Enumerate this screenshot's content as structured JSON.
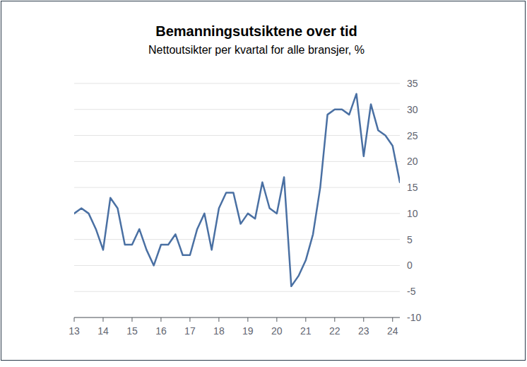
{
  "chart_data": {
    "type": "line",
    "title": "Bemanningsutsiktene over tid",
    "subtitle": "Nettoutsikter per kvartal for alle bransjer, %",
    "x": [
      13,
      13.25,
      13.5,
      13.75,
      14,
      14.25,
      14.5,
      14.75,
      15,
      15.25,
      15.5,
      15.75,
      16,
      16.25,
      16.5,
      16.75,
      17,
      17.25,
      17.5,
      17.75,
      18,
      18.25,
      18.5,
      18.75,
      19,
      19.25,
      19.5,
      19.75,
      20,
      20.25,
      20.5,
      20.75,
      21,
      21.25,
      21.5,
      21.75,
      22,
      22.25,
      22.5,
      22.75,
      23,
      23.25,
      23.5,
      23.75,
      24,
      24.25
    ],
    "values": [
      10,
      11,
      10,
      7,
      3,
      13,
      11,
      4,
      4,
      7,
      3,
      0,
      4,
      4,
      6,
      2,
      2,
      7,
      10,
      3,
      11,
      14,
      14,
      8,
      10,
      9,
      16,
      11,
      10,
      17,
      -4,
      -2,
      1,
      6,
      15,
      29,
      30,
      30,
      29,
      33,
      21,
      31,
      26,
      25,
      23,
      16
    ],
    "color": "#4a70a3",
    "xlim": [
      13,
      24.25
    ],
    "xticks": [
      13,
      14,
      15,
      16,
      17,
      18,
      19,
      20,
      21,
      22,
      23,
      24
    ],
    "ylim": [
      -10,
      35
    ],
    "yticks": [
      -10,
      -5,
      0,
      5,
      10,
      15,
      20,
      25,
      30,
      35
    ],
    "grid": true
  }
}
